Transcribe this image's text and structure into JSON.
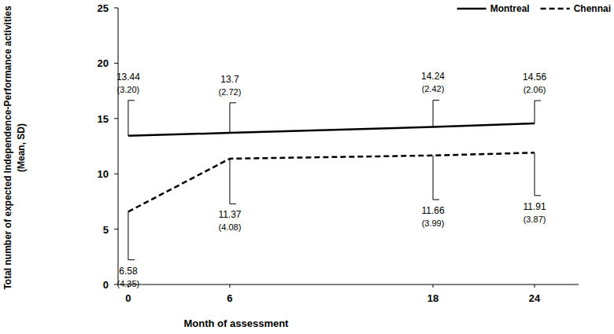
{
  "chart_data": {
    "type": "line",
    "x_label": "Month of assessment",
    "y_label": [
      "Total number of expected Independence-Performance activities",
      "(Mean, SD)"
    ],
    "x": [
      0,
      6,
      18,
      24
    ],
    "xlim": [
      -0.6,
      26.6
    ],
    "xticks": [
      0,
      6,
      18,
      24
    ],
    "ylim": [
      0,
      25
    ],
    "yticks": [
      0,
      5,
      10,
      15,
      20,
      25
    ],
    "legend": "upper right",
    "data_labels": true,
    "grid": false,
    "series": [
      {
        "name": "Montreal",
        "color": "#000000",
        "line_style": "solid",
        "values": [
          13.44,
          13.7,
          14.24,
          14.56
        ],
        "errors": [
          3.2,
          2.72,
          2.42,
          2.06
        ],
        "error_labels": [
          "(3.20)",
          "(2.72)",
          "(2.42)",
          "(2.06)"
        ]
      },
      {
        "name": "Chennai",
        "color": "#000000",
        "line_style": "dashed",
        "values": [
          6.58,
          11.37,
          11.66,
          11.91
        ],
        "errors": [
          4.35,
          4.08,
          3.99,
          3.87
        ],
        "error_labels": [
          "(4.35)",
          "(4.08)",
          "(3.99)",
          "(3.87)"
        ]
      }
    ]
  }
}
